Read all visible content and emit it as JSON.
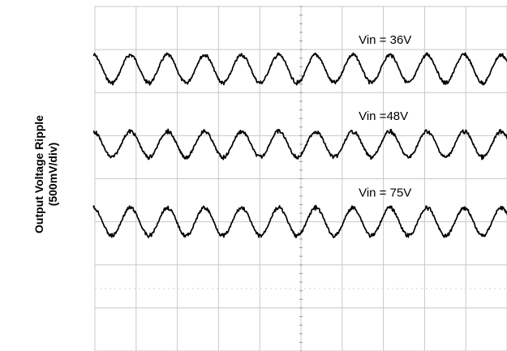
{
  "chart_data": {
    "type": "line",
    "ylabel_lines": [
      "Output Voltage Ripple",
      "(500mV/div)"
    ],
    "xlabel": "",
    "grid": true,
    "x_divisions": 10,
    "y_divisions": 8,
    "series": [
      {
        "name": "Vin = 36V",
        "cycles": 11.2,
        "amplitude_div": 0.65,
        "offset_div": 1.45,
        "phase_cycles": 0.0
      },
      {
        "name": "Vin =48V",
        "cycles": 11.2,
        "amplitude_div": 0.6,
        "offset_div": 3.2,
        "phase_cycles": 0.0
      },
      {
        "name": "Vin = 75V",
        "cycles": 11.2,
        "amplitude_div": 0.65,
        "offset_div": 5.0,
        "phase_cycles": 0.0
      }
    ],
    "colors": {
      "trace": "#000000",
      "grid": "#c8c8c8",
      "dotted": "#d0d0d0"
    }
  }
}
